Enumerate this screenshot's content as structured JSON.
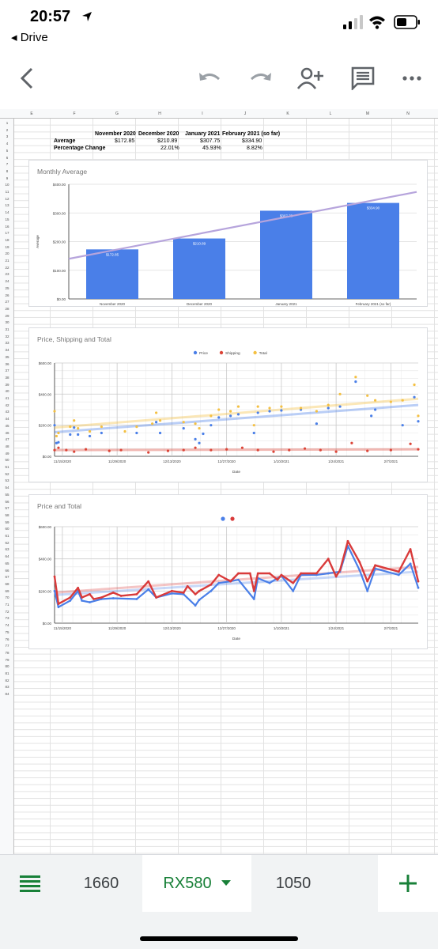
{
  "status": {
    "time": "20:57",
    "back_app": "Drive"
  },
  "toolbar": {
    "icons": [
      "back-arrow-icon",
      "undo-icon",
      "redo-icon",
      "add-person-icon",
      "comment-icon",
      "more-icon"
    ]
  },
  "sheet": {
    "columns": [
      "E",
      "F",
      "G",
      "H",
      "I",
      "J",
      "K",
      "L",
      "M",
      "N"
    ],
    "rows": [
      1,
      2,
      3,
      4,
      5,
      6,
      7,
      8,
      9,
      10,
      11,
      12,
      13,
      14,
      15,
      16,
      17,
      18,
      19,
      20,
      21,
      22,
      23,
      24,
      25,
      26,
      27,
      28,
      29,
      30,
      31,
      32,
      33,
      34,
      35,
      36,
      37,
      38,
      39,
      40,
      41,
      42,
      43,
      44,
      45,
      46,
      47,
      48,
      49,
      50,
      51,
      52,
      53,
      54,
      55,
      56,
      57,
      58,
      59,
      60,
      61,
      62,
      63,
      64,
      65,
      66,
      67,
      68,
      69,
      70,
      71,
      72,
      73,
      74,
      75,
      76,
      77,
      78,
      79,
      80,
      81,
      82,
      83,
      84
    ],
    "table": {
      "headers": [
        "November 2020",
        "December 2020",
        "January 2021",
        "February 2021 (so far)"
      ],
      "average_label": "Average",
      "averages": [
        "$172.85",
        "$210.89",
        "$307.75",
        "$334.90"
      ],
      "change_label": "Percentage Change",
      "changes": [
        "",
        "22.01%",
        "45.93%",
        "8.82%"
      ]
    }
  },
  "chart_data": [
    {
      "type": "bar",
      "title": "Monthly Average",
      "ylabel": "Average",
      "categories": [
        "November 2020",
        "December 2020",
        "January 2021",
        "February 2021 (so far)"
      ],
      "values": [
        172.85,
        210.89,
        307.75,
        334.9
      ],
      "data_labels": [
        "$172.85",
        "$210.89",
        "$307.75",
        "$334.90"
      ],
      "ylim": [
        0,
        400
      ],
      "yticks": [
        "$0.00",
        "$100.00",
        "$200.00",
        "$300.00",
        "$400.00"
      ],
      "trendline": true,
      "colors": {
        "bar": "#4a7fe8",
        "trend": "#b6a4dc"
      }
    },
    {
      "type": "scatter",
      "title": "Price, Shipping  and Total",
      "xlabel": "Date",
      "legend": [
        "Price",
        "Shipping",
        "Total"
      ],
      "legend_position": "top",
      "xticks": [
        "11/15/2020",
        "11/29/2020",
        "12/13/2020",
        "12/27/2020",
        "1/10/2021",
        "1/24/2021",
        "2/7/2021"
      ],
      "yticks": [
        "$0.00",
        "$200.00",
        "$400.00",
        "$600.00"
      ],
      "ylim": [
        0,
        600
      ],
      "xrange_days": [
        0,
        93
      ],
      "colors": {
        "Price": "#4a7fe8",
        "Shipping": "#db4437",
        "Total": "#f4c042"
      },
      "series": [
        {
          "name": "Price",
          "points": [
            [
              0,
              200
            ],
            [
              0.5,
              85
            ],
            [
              1,
              90
            ],
            [
              4,
              140
            ],
            [
              5,
              185
            ],
            [
              6,
              140
            ],
            [
              9,
              130
            ],
            [
              12,
              150
            ],
            [
              21,
              150
            ],
            [
              26,
              220
            ],
            [
              27,
              150
            ],
            [
              33,
              180
            ],
            [
              36,
              110
            ],
            [
              37,
              85
            ],
            [
              38,
              145
            ],
            [
              40,
              200
            ],
            [
              42,
              250
            ],
            [
              45,
              260
            ],
            [
              47,
              270
            ],
            [
              51,
              150
            ],
            [
              52,
              280
            ],
            [
              55,
              290
            ],
            [
              58,
              295
            ],
            [
              63,
              300
            ],
            [
              67,
              210
            ],
            [
              70,
              310
            ],
            [
              73,
              320
            ],
            [
              77,
              480
            ],
            [
              81,
              260
            ],
            [
              82,
              300
            ],
            [
              89,
              200
            ],
            [
              92,
              380
            ],
            [
              93,
              225
            ]
          ]
        },
        {
          "name": "Shipping",
          "points": [
            [
              0,
              40
            ],
            [
              1,
              55
            ],
            [
              3,
              40
            ],
            [
              5,
              30
            ],
            [
              8,
              45
            ],
            [
              14,
              35
            ],
            [
              17,
              40
            ],
            [
              24,
              25
            ],
            [
              29,
              35
            ],
            [
              33,
              40
            ],
            [
              36,
              55
            ],
            [
              40,
              40
            ],
            [
              44,
              45
            ],
            [
              48,
              55
            ],
            [
              52,
              40
            ],
            [
              56,
              30
            ],
            [
              60,
              40
            ],
            [
              64,
              50
            ],
            [
              68,
              40
            ],
            [
              72,
              30
            ],
            [
              76,
              85
            ],
            [
              80,
              35
            ],
            [
              86,
              40
            ],
            [
              91,
              80
            ],
            [
              93,
              45
            ]
          ]
        },
        {
          "name": "Total",
          "points": [
            [
              0,
              290
            ],
            [
              0.5,
              130
            ],
            [
              1,
              150
            ],
            [
              4,
              190
            ],
            [
              5,
              230
            ],
            [
              6,
              180
            ],
            [
              9,
              160
            ],
            [
              12,
              190
            ],
            [
              18,
              160
            ],
            [
              21,
              190
            ],
            [
              25,
              210
            ],
            [
              26,
              280
            ],
            [
              27,
              230
            ],
            [
              33,
              220
            ],
            [
              36,
              210
            ],
            [
              37,
              180
            ],
            [
              40,
              260
            ],
            [
              42,
              300
            ],
            [
              45,
              290
            ],
            [
              47,
              320
            ],
            [
              51,
              200
            ],
            [
              52,
              320
            ],
            [
              55,
              310
            ],
            [
              58,
              320
            ],
            [
              63,
              310
            ],
            [
              67,
              290
            ],
            [
              70,
              330
            ],
            [
              73,
              400
            ],
            [
              77,
              510
            ],
            [
              80,
              390
            ],
            [
              82,
              360
            ],
            [
              86,
              350
            ],
            [
              89,
              360
            ],
            [
              92,
              460
            ],
            [
              93,
              260
            ]
          ]
        }
      ],
      "trendlines": {
        "Price": [
          155,
          330
        ],
        "Shipping": [
          40,
          45
        ],
        "Total": [
          185,
          370
        ]
      }
    },
    {
      "type": "line",
      "title": "Price and Total",
      "xlabel": "Date",
      "legend_position": "top",
      "xticks": [
        "11/15/2020",
        "11/29/2020",
        "12/13/2020",
        "12/27/2020",
        "1/10/2021",
        "1/24/2021",
        "2/7/2021"
      ],
      "yticks": [
        "$0.00",
        "$200.00",
        "$400.00",
        "$600.00"
      ],
      "ylim": [
        0,
        600
      ],
      "xrange_days": [
        0,
        93
      ],
      "colors": {
        "Price": "#4a7fe8",
        "Total": "#d93a3a"
      },
      "series": [
        {
          "name": "Price",
          "points": [
            [
              0,
              200
            ],
            [
              1,
              100
            ],
            [
              4,
              140
            ],
            [
              6,
              200
            ],
            [
              7,
              140
            ],
            [
              9,
              130
            ],
            [
              12,
              150
            ],
            [
              15,
              155
            ],
            [
              21,
              150
            ],
            [
              24,
              210
            ],
            [
              26,
              160
            ],
            [
              30,
              185
            ],
            [
              33,
              180
            ],
            [
              36,
              110
            ],
            [
              37,
              145
            ],
            [
              40,
              200
            ],
            [
              42,
              250
            ],
            [
              45,
              260
            ],
            [
              47,
              270
            ],
            [
              51,
              150
            ],
            [
              52,
              280
            ],
            [
              55,
              250
            ],
            [
              58,
              295
            ],
            [
              61,
              200
            ],
            [
              63,
              300
            ],
            [
              67,
              300
            ],
            [
              70,
              310
            ],
            [
              73,
              320
            ],
            [
              75,
              480
            ],
            [
              78,
              330
            ],
            [
              80,
              200
            ],
            [
              82,
              340
            ],
            [
              88,
              300
            ],
            [
              91,
              370
            ],
            [
              93,
              220
            ]
          ]
        },
        {
          "name": "Total",
          "points": [
            [
              0,
              290
            ],
            [
              1,
              120
            ],
            [
              4,
              160
            ],
            [
              6,
              220
            ],
            [
              7,
              160
            ],
            [
              9,
              180
            ],
            [
              10,
              150
            ],
            [
              12,
              160
            ],
            [
              15,
              190
            ],
            [
              17,
              170
            ],
            [
              21,
              180
            ],
            [
              24,
              260
            ],
            [
              26,
              160
            ],
            [
              30,
              200
            ],
            [
              33,
              190
            ],
            [
              34,
              230
            ],
            [
              36,
              180
            ],
            [
              37,
              200
            ],
            [
              40,
              240
            ],
            [
              42,
              300
            ],
            [
              45,
              260
            ],
            [
              47,
              310
            ],
            [
              50,
              310
            ],
            [
              51,
              200
            ],
            [
              52,
              310
            ],
            [
              55,
              310
            ],
            [
              57,
              270
            ],
            [
              58,
              300
            ],
            [
              61,
              250
            ],
            [
              63,
              310
            ],
            [
              67,
              310
            ],
            [
              70,
              400
            ],
            [
              72,
              290
            ],
            [
              73,
              330
            ],
            [
              75,
              510
            ],
            [
              78,
              380
            ],
            [
              80,
              260
            ],
            [
              82,
              360
            ],
            [
              88,
              320
            ],
            [
              91,
              460
            ],
            [
              93,
              260
            ]
          ]
        }
      ],
      "trendlines": {
        "Price": [
          175,
          320
        ],
        "Total": [
          190,
          350
        ]
      }
    }
  ],
  "tabs": {
    "menu_icon": "sheets-list-icon",
    "items": [
      "1660",
      "RX580",
      "1050"
    ],
    "active": "RX580",
    "add_icon": "plus-icon"
  }
}
